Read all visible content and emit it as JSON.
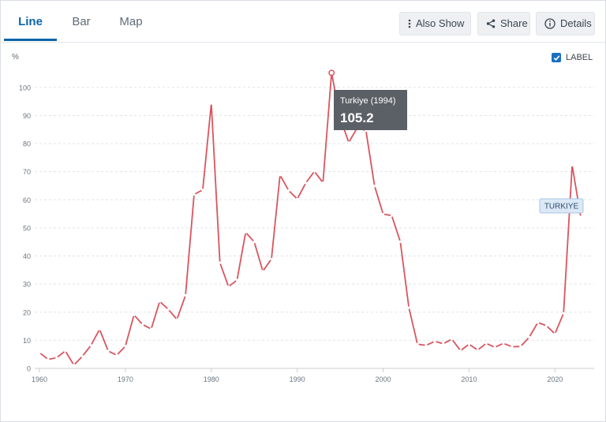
{
  "tabs": [
    {
      "label": "Line",
      "active": true
    },
    {
      "label": "Bar",
      "active": false
    },
    {
      "label": "Map",
      "active": false
    }
  ],
  "toolbar": {
    "also_show_label": "Also Show",
    "share_label": "Share",
    "details_label": "Details"
  },
  "label_toggle": {
    "label": "LABEL",
    "checked": true
  },
  "colors": {
    "accent": "#0b65a8",
    "series": "#d9555f",
    "tooltip_bg": "#5b6066",
    "series_label_bg": "#dbe8f5",
    "series_label_border": "#a9c6e4",
    "grid": "#dfe3e7"
  },
  "icons": {
    "also_show": "vertical-dots-icon",
    "share": "share-icon",
    "details": "info-icon",
    "checkbox": "checkmark-icon"
  },
  "tooltip": {
    "title": "Turkiye (1994)",
    "value": "105.2"
  },
  "chart_data": {
    "type": "line",
    "ylabel": "%",
    "xlabel": "",
    "xlim": [
      1960,
      2023
    ],
    "ylim": [
      0,
      105
    ],
    "x_ticks": [
      1960,
      1970,
      1980,
      1990,
      2000,
      2010,
      2020
    ],
    "y_ticks": [
      0,
      10,
      20,
      30,
      40,
      50,
      60,
      70,
      80,
      90,
      100
    ],
    "grid": "horizontal-dashed",
    "highlighted_point": {
      "x": 1994,
      "y": 105.2
    },
    "series": [
      {
        "name": "TURKIYE",
        "x": [
          1960,
          1961,
          1962,
          1963,
          1964,
          1965,
          1966,
          1967,
          1968,
          1969,
          1970,
          1971,
          1972,
          1973,
          1974,
          1975,
          1976,
          1977,
          1978,
          1979,
          1980,
          1981,
          1982,
          1983,
          1984,
          1985,
          1986,
          1987,
          1988,
          1989,
          1990,
          1991,
          1992,
          1993,
          1994,
          1995,
          1996,
          1997,
          1998,
          1999,
          2000,
          2001,
          2002,
          2003,
          2004,
          2005,
          2006,
          2007,
          2008,
          2009,
          2010,
          2011,
          2012,
          2013,
          2014,
          2015,
          2016,
          2017,
          2018,
          2019,
          2020,
          2021,
          2022,
          2023
        ],
        "values": [
          5.6,
          3.2,
          3.8,
          6.2,
          1.2,
          4.3,
          8.2,
          13.9,
          6.2,
          4.7,
          7.9,
          19.0,
          15.6,
          14.0,
          23.8,
          21.0,
          17.4,
          26.0,
          61.9,
          63.5,
          94.3,
          37.6,
          29.1,
          31.4,
          48.4,
          45.0,
          34.6,
          38.9,
          68.8,
          63.3,
          60.3,
          66.0,
          70.1,
          66.1,
          105.2,
          89.1,
          80.4,
          85.7,
          84.6,
          64.9,
          54.9,
          54.4,
          45.1,
          21.6,
          8.6,
          8.2,
          9.6,
          8.8,
          10.4,
          6.3,
          8.6,
          6.5,
          8.9,
          7.5,
          8.9,
          7.7,
          7.8,
          11.1,
          16.3,
          15.2,
          12.3,
          19.6,
          72.3,
          53.9
        ]
      }
    ]
  }
}
